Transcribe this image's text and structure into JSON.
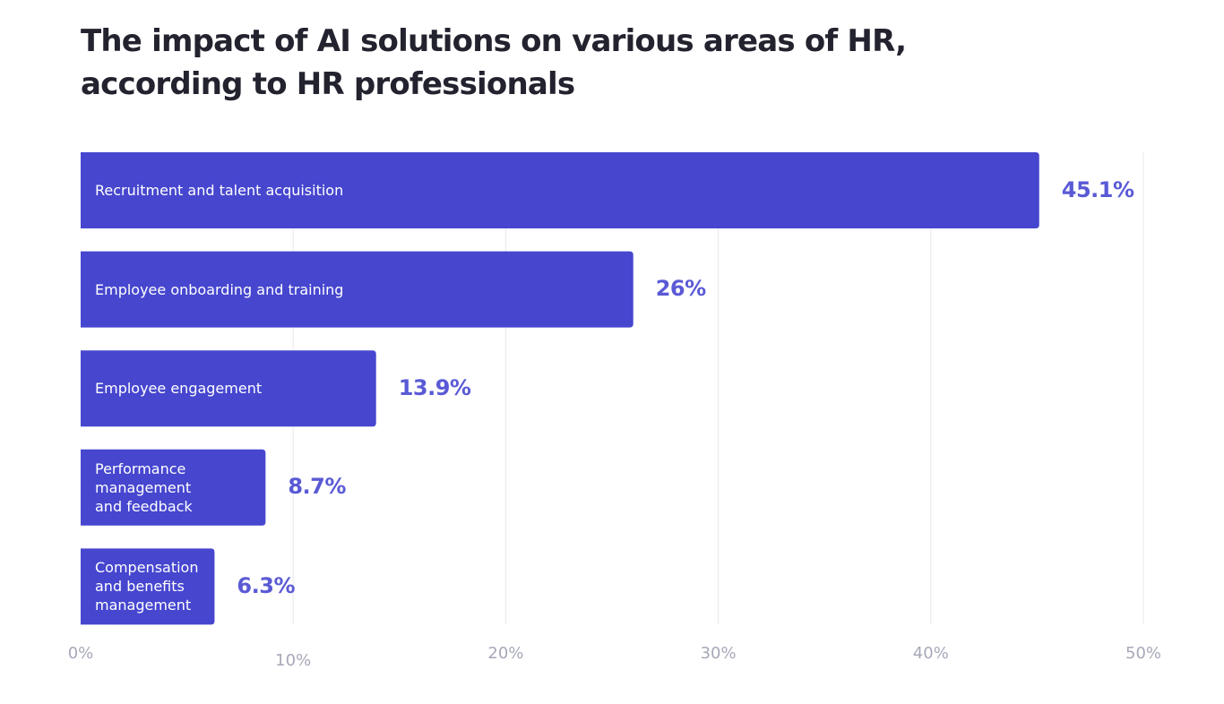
{
  "chart_data": {
    "type": "bar",
    "orientation": "horizontal",
    "title": "The impact of AI solutions on various areas of HR, according to HR professionals",
    "categories": [
      "Recruitment and talent acquisition",
      "Employee onboarding and training",
      "Employee engagement",
      "Performance management and feedback",
      "Compensation and benefits management"
    ],
    "category_lines": [
      [
        "Recruitment and talent acquisition"
      ],
      [
        "Employee onboarding and training"
      ],
      [
        "Employee engagement"
      ],
      [
        "Performance",
        "management",
        "and feedback"
      ],
      [
        "Compensation",
        "and benefits",
        "management"
      ]
    ],
    "values": [
      45.1,
      26,
      13.9,
      8.7,
      6.3
    ],
    "data_labels": [
      "45.1%",
      "26%",
      "13.9%",
      "8.7%",
      "6.3%"
    ],
    "xlim": [
      0,
      50
    ],
    "xticks": [
      0,
      10,
      20,
      30,
      40,
      50
    ],
    "xtick_labels": [
      "0%",
      "10%",
      "20%",
      "30%",
      "40%",
      "50%"
    ],
    "grid": "vertical",
    "xlabel": "",
    "ylabel": "",
    "colors": {
      "bar": "#4646cf",
      "value_label": "#5a5ad6",
      "grid": "#ececef",
      "tick": "#a7a8b8",
      "title": "#23232f"
    }
  }
}
